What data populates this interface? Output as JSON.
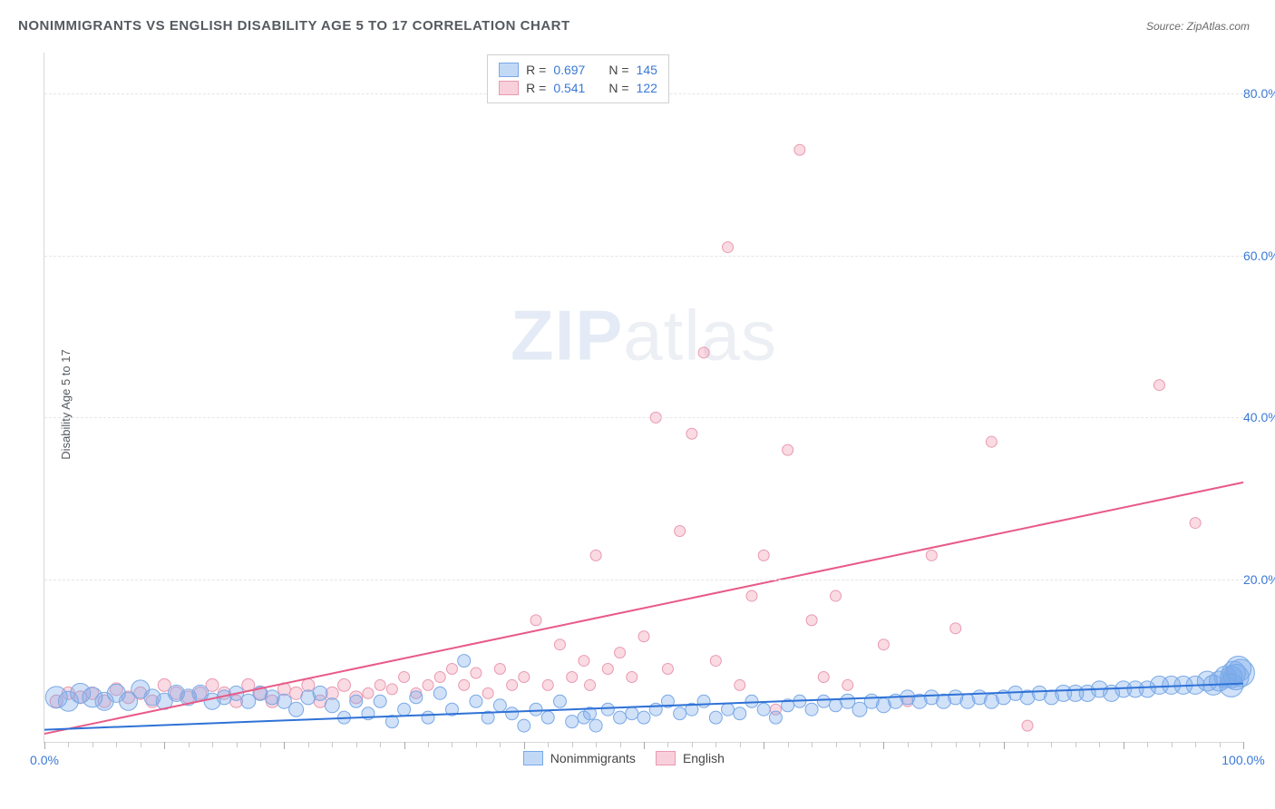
{
  "title": "NONIMMIGRANTS VS ENGLISH DISABILITY AGE 5 TO 17 CORRELATION CHART",
  "source": "Source: ZipAtlas.com",
  "ylabel": "Disability Age 5 to 17",
  "watermark_main": "ZIP",
  "watermark_sub": "atlas",
  "chart": {
    "type": "scatter-with-trend",
    "background_color": "#ffffff",
    "grid_color": "#e6e6e6",
    "axis_color": "#d8d8d8",
    "xlim": [
      0,
      100
    ],
    "ylim": [
      0,
      85
    ],
    "ytick_step": 20,
    "ytick_labels": [
      "20.0%",
      "40.0%",
      "60.0%",
      "80.0%"
    ],
    "xtick_labels": {
      "0": "0.0%",
      "100": "100.0%"
    },
    "minor_tick_step": 2,
    "major_tick_step": 10,
    "tick_label_color": "#3a79d6",
    "series": [
      {
        "name": "Nonimmigrants",
        "fill": "rgba(120,170,235,0.35)",
        "stroke": "#7aa9e6",
        "trend_color": "#2f72d6",
        "trend_width": 2,
        "trend": {
          "x1": 0,
          "y1": 1.5,
          "x2": 100,
          "y2": 7.2
        },
        "r": 0.697,
        "n": 145,
        "base_radius": 7,
        "points": [
          [
            1,
            5.5,
            12
          ],
          [
            2,
            5,
            11
          ],
          [
            3,
            6,
            11
          ],
          [
            4,
            5.5,
            11
          ],
          [
            5,
            5,
            10
          ],
          [
            6,
            6,
            10
          ],
          [
            7,
            5,
            10
          ],
          [
            8,
            6.5,
            10
          ],
          [
            9,
            5.5,
            9
          ],
          [
            10,
            5,
            9
          ],
          [
            11,
            6,
            9
          ],
          [
            12,
            5.5,
            9
          ],
          [
            13,
            6,
            9
          ],
          [
            14,
            5,
            9
          ],
          [
            15,
            5.5,
            8
          ],
          [
            16,
            6,
            8
          ],
          [
            17,
            5,
            8
          ],
          [
            18,
            6,
            8
          ],
          [
            19,
            5.5,
            8
          ],
          [
            20,
            5,
            8
          ],
          [
            21,
            4,
            8
          ],
          [
            22,
            5.5,
            8
          ],
          [
            23,
            6,
            8
          ],
          [
            24,
            4.5,
            8
          ],
          [
            25,
            3,
            7
          ],
          [
            26,
            5,
            7
          ],
          [
            27,
            3.5,
            7
          ],
          [
            28,
            5,
            7
          ],
          [
            29,
            2.5,
            7
          ],
          [
            30,
            4,
            7
          ],
          [
            31,
            5.5,
            7
          ],
          [
            32,
            3,
            7
          ],
          [
            33,
            6,
            7
          ],
          [
            34,
            4,
            7
          ],
          [
            35,
            10,
            7
          ],
          [
            36,
            5,
            7
          ],
          [
            37,
            3,
            7
          ],
          [
            38,
            4.5,
            7
          ],
          [
            39,
            3.5,
            7
          ],
          [
            40,
            2,
            7
          ],
          [
            41,
            4,
            7
          ],
          [
            42,
            3,
            7
          ],
          [
            43,
            5,
            7
          ],
          [
            44,
            2.5,
            7
          ],
          [
            45,
            3,
            7
          ],
          [
            45.5,
            3.5,
            7
          ],
          [
            46,
            2,
            7
          ],
          [
            47,
            4,
            7
          ],
          [
            48,
            3,
            7
          ],
          [
            49,
            3.5,
            7
          ],
          [
            50,
            3,
            7
          ],
          [
            51,
            4,
            7
          ],
          [
            52,
            5,
            7
          ],
          [
            53,
            3.5,
            7
          ],
          [
            54,
            4,
            7
          ],
          [
            55,
            5,
            7
          ],
          [
            56,
            3,
            7
          ],
          [
            57,
            4,
            7
          ],
          [
            58,
            3.5,
            7
          ],
          [
            59,
            5,
            7
          ],
          [
            60,
            4,
            7
          ],
          [
            61,
            3,
            7
          ],
          [
            62,
            4.5,
            7
          ],
          [
            63,
            5,
            7
          ],
          [
            64,
            4,
            7
          ],
          [
            65,
            5,
            7
          ],
          [
            66,
            4.5,
            7
          ],
          [
            67,
            5,
            8
          ],
          [
            68,
            4,
            8
          ],
          [
            69,
            5,
            8
          ],
          [
            70,
            4.5,
            8
          ],
          [
            71,
            5,
            8
          ],
          [
            72,
            5.5,
            8
          ],
          [
            73,
            5,
            8
          ],
          [
            74,
            5.5,
            8
          ],
          [
            75,
            5,
            8
          ],
          [
            76,
            5.5,
            8
          ],
          [
            77,
            5,
            8
          ],
          [
            78,
            5.5,
            8
          ],
          [
            79,
            5,
            8
          ],
          [
            80,
            5.5,
            8
          ],
          [
            81,
            6,
            8
          ],
          [
            82,
            5.5,
            8
          ],
          [
            83,
            6,
            8
          ],
          [
            84,
            5.5,
            8
          ],
          [
            85,
            6,
            9
          ],
          [
            86,
            6,
            9
          ],
          [
            87,
            6,
            9
          ],
          [
            88,
            6.5,
            9
          ],
          [
            89,
            6,
            9
          ],
          [
            90,
            6.5,
            9
          ],
          [
            91,
            6.5,
            9
          ],
          [
            92,
            6.5,
            9
          ],
          [
            93,
            7,
            10
          ],
          [
            94,
            7,
            10
          ],
          [
            95,
            7,
            10
          ],
          [
            96,
            7,
            10
          ],
          [
            97,
            7.5,
            11
          ],
          [
            97.5,
            7,
            11
          ],
          [
            98,
            7.5,
            11
          ],
          [
            98.5,
            8,
            12
          ],
          [
            99,
            8,
            12
          ],
          [
            99,
            7,
            13
          ],
          [
            99.2,
            8.5,
            13
          ],
          [
            99.4,
            8,
            14
          ],
          [
            99.6,
            9,
            14
          ],
          [
            99.8,
            8.5,
            15
          ]
        ]
      },
      {
        "name": "English",
        "fill": "rgba(240,150,175,0.35)",
        "stroke": "#e89ab0",
        "trend_color": "#e85a88",
        "trend_width": 2,
        "trend": {
          "x1": 0,
          "y1": 1,
          "x2": 100,
          "y2": 32
        },
        "r": 0.541,
        "n": 122,
        "base_radius": 7,
        "points": [
          [
            1,
            5,
            7
          ],
          [
            2,
            6,
            7
          ],
          [
            3,
            5.5,
            7
          ],
          [
            4,
            6,
            7
          ],
          [
            5,
            5,
            7
          ],
          [
            6,
            6.5,
            7
          ],
          [
            7,
            5.5,
            7
          ],
          [
            8,
            6,
            7
          ],
          [
            9,
            5,
            7
          ],
          [
            10,
            7,
            7
          ],
          [
            11,
            6,
            7
          ],
          [
            12,
            5.5,
            7
          ],
          [
            13,
            6,
            7
          ],
          [
            14,
            7,
            7
          ],
          [
            15,
            6,
            7
          ],
          [
            16,
            5,
            7
          ],
          [
            17,
            7,
            7
          ],
          [
            18,
            6,
            7
          ],
          [
            19,
            5,
            7
          ],
          [
            20,
            6.5,
            7
          ],
          [
            21,
            6,
            7
          ],
          [
            22,
            7,
            7
          ],
          [
            23,
            5,
            7
          ],
          [
            24,
            6,
            7
          ],
          [
            25,
            7,
            7
          ],
          [
            26,
            5.5,
            7
          ],
          [
            27,
            6,
            6
          ],
          [
            28,
            7,
            6
          ],
          [
            29,
            6.5,
            6
          ],
          [
            30,
            8,
            6
          ],
          [
            31,
            6,
            6
          ],
          [
            32,
            7,
            6
          ],
          [
            33,
            8,
            6
          ],
          [
            34,
            9,
            6
          ],
          [
            35,
            7,
            6
          ],
          [
            36,
            8.5,
            6
          ],
          [
            37,
            6,
            6
          ],
          [
            38,
            9,
            6
          ],
          [
            39,
            7,
            6
          ],
          [
            40,
            8,
            6
          ],
          [
            41,
            15,
            6
          ],
          [
            42,
            7,
            6
          ],
          [
            43,
            12,
            6
          ],
          [
            44,
            8,
            6
          ],
          [
            45,
            10,
            6
          ],
          [
            45.5,
            7,
            6
          ],
          [
            46,
            23,
            6
          ],
          [
            47,
            9,
            6
          ],
          [
            48,
            11,
            6
          ],
          [
            49,
            8,
            6
          ],
          [
            50,
            13,
            6
          ],
          [
            51,
            40,
            6
          ],
          [
            52,
            9,
            6
          ],
          [
            53,
            26,
            6
          ],
          [
            54,
            38,
            6
          ],
          [
            55,
            48,
            6
          ],
          [
            56,
            10,
            6
          ],
          [
            57,
            61,
            6
          ],
          [
            58,
            7,
            6
          ],
          [
            59,
            18,
            6
          ],
          [
            60,
            23,
            6
          ],
          [
            61,
            4,
            6
          ],
          [
            62,
            36,
            6
          ],
          [
            63,
            73,
            6
          ],
          [
            64,
            15,
            6
          ],
          [
            65,
            8,
            6
          ],
          [
            66,
            18,
            6
          ],
          [
            67,
            7,
            6
          ],
          [
            70,
            12,
            6
          ],
          [
            72,
            5,
            6
          ],
          [
            74,
            23,
            6
          ],
          [
            76,
            14,
            6
          ],
          [
            79,
            37,
            6
          ],
          [
            82,
            2,
            6
          ],
          [
            93,
            44,
            6
          ],
          [
            96,
            27,
            6
          ]
        ]
      }
    ]
  },
  "legend_top": {
    "rows": [
      {
        "swatch_fill": "rgba(120,170,235,0.45)",
        "swatch_stroke": "#7aa9e6",
        "r_label": "R =",
        "r_value": "0.697",
        "n_label": "N =",
        "n_value": "145"
      },
      {
        "swatch_fill": "rgba(240,150,175,0.45)",
        "swatch_stroke": "#e89ab0",
        "r_label": "R =",
        "r_value": "0.541",
        "n_label": "N =",
        "n_value": "122"
      }
    ]
  },
  "legend_bottom": {
    "items": [
      {
        "label": "Nonimmigrants",
        "fill": "rgba(120,170,235,0.45)",
        "stroke": "#7aa9e6"
      },
      {
        "label": "English",
        "fill": "rgba(240,150,175,0.45)",
        "stroke": "#e89ab0"
      }
    ]
  }
}
